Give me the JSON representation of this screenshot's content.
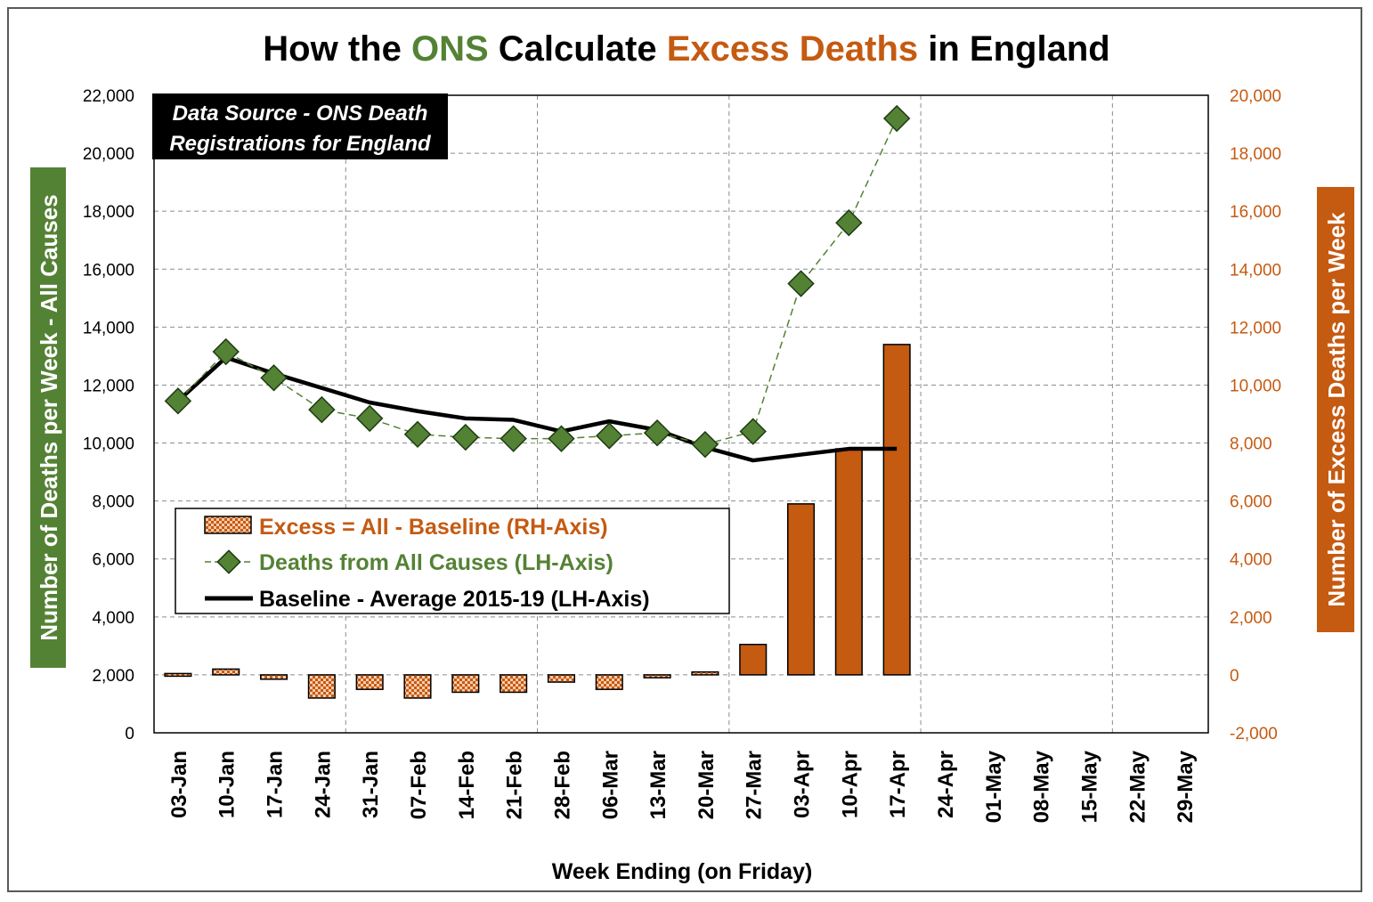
{
  "chart_data": {
    "type": "bar",
    "title_parts": [
      {
        "text": "How the ",
        "color": "#000000"
      },
      {
        "text": "ONS",
        "color": "#548235"
      },
      {
        "text": " Calculate ",
        "color": "#000000"
      },
      {
        "text": "Excess Deaths",
        "color": "#C55A11"
      },
      {
        "text": " in England",
        "color": "#000000"
      }
    ],
    "xlabel": "Week Ending  (on Friday)",
    "ylabel_left": "Number of Deaths per Week - All Causes",
    "ylabel_right": "Number of Excess Deaths per Week",
    "source_note": [
      "Data Source - ONS Death",
      "Registrations for England"
    ],
    "categories": [
      "03-Jan",
      "10-Jan",
      "17-Jan",
      "24-Jan",
      "31-Jan",
      "07-Feb",
      "14-Feb",
      "21-Feb",
      "28-Feb",
      "06-Mar",
      "13-Mar",
      "20-Mar",
      "27-Mar",
      "03-Apr",
      "10-Apr",
      "17-Apr",
      "24-Apr",
      "01-May",
      "08-May",
      "15-May",
      "22-May",
      "29-May"
    ],
    "ylim_left": [
      0,
      22000
    ],
    "ylim_right": [
      -2000,
      20000
    ],
    "yticks_left": [
      "0",
      "2,000",
      "4,000",
      "6,000",
      "8,000",
      "10,000",
      "12,000",
      "14,000",
      "16,000",
      "18,000",
      "20,000",
      "22,000"
    ],
    "yticks_right": [
      "-2,000",
      "0",
      "2,000",
      "4,000",
      "6,000",
      "8,000",
      "10,000",
      "12,000",
      "14,000",
      "16,000",
      "18,000",
      "20,000"
    ],
    "grid": true,
    "colors": {
      "excess": "#C55A11",
      "all_causes": "#548235",
      "baseline": "#000000",
      "left_axis_bg": "#548235",
      "right_axis_bg": "#C55A11"
    },
    "series": [
      {
        "name": "Excess = All - Baseline (RH-Axis)",
        "axis": "right",
        "type": "bar",
        "values": [
          -50,
          200,
          -150,
          -800,
          -500,
          -800,
          -600,
          -600,
          -250,
          -500,
          -100,
          100,
          1050,
          5900,
          7800,
          11400,
          null,
          null,
          null,
          null,
          null,
          null
        ]
      },
      {
        "name": "Deaths from All Causes (LH-Axis)",
        "axis": "left",
        "type": "line",
        "values": [
          11450,
          13150,
          12250,
          11150,
          10850,
          10300,
          10200,
          10150,
          10150,
          10250,
          10350,
          9950,
          10400,
          15500,
          17600,
          21200,
          null,
          null,
          null,
          null,
          null,
          null
        ]
      },
      {
        "name": "Baseline - Average 2015-19 (LH-Axis)",
        "axis": "left",
        "type": "line",
        "values": [
          11450,
          12950,
          12400,
          11900,
          11400,
          11100,
          10850,
          10800,
          10400,
          10750,
          10450,
          9850,
          9400,
          9600,
          9800,
          9800,
          null,
          null,
          null,
          null,
          null,
          null
        ]
      }
    ],
    "legend": {
      "position": "lower-left"
    }
  }
}
